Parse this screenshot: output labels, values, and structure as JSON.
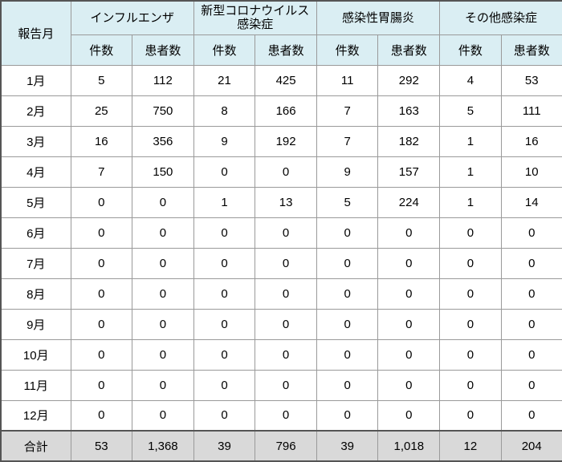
{
  "table": {
    "header": {
      "month": "報告月",
      "groups": [
        {
          "lines": [
            "インフルエンザ"
          ]
        },
        {
          "lines": [
            "新型コロナウイルス",
            "感染症"
          ]
        },
        {
          "lines": [
            "感染性胃腸炎"
          ]
        },
        {
          "lines": [
            "その他感染症"
          ]
        }
      ],
      "subheaders": [
        "件数",
        "患者数",
        "件数",
        "患者数",
        "件数",
        "患者数",
        "件数",
        "患者数"
      ]
    },
    "rows": [
      [
        "1月",
        5,
        112,
        21,
        425,
        11,
        292,
        4,
        53
      ],
      [
        "2月",
        25,
        750,
        8,
        166,
        7,
        163,
        5,
        111
      ],
      [
        "3月",
        16,
        356,
        9,
        192,
        7,
        182,
        1,
        16
      ],
      [
        "4月",
        7,
        150,
        0,
        0,
        9,
        157,
        1,
        10
      ],
      [
        "5月",
        0,
        0,
        1,
        13,
        5,
        224,
        1,
        14
      ],
      [
        "6月",
        0,
        0,
        0,
        0,
        0,
        0,
        0,
        0
      ],
      [
        "7月",
        0,
        0,
        0,
        0,
        0,
        0,
        0,
        0
      ],
      [
        "8月",
        0,
        0,
        0,
        0,
        0,
        0,
        0,
        0
      ],
      [
        "9月",
        0,
        0,
        0,
        0,
        0,
        0,
        0,
        0
      ],
      [
        "10月",
        0,
        0,
        0,
        0,
        0,
        0,
        0,
        0
      ],
      [
        "11月",
        0,
        0,
        0,
        0,
        0,
        0,
        0,
        0
      ],
      [
        "12月",
        0,
        0,
        0,
        0,
        0,
        0,
        0,
        0
      ]
    ],
    "total": [
      "合計",
      53,
      "1,368",
      39,
      796,
      39,
      "1,018",
      12,
      204
    ]
  }
}
